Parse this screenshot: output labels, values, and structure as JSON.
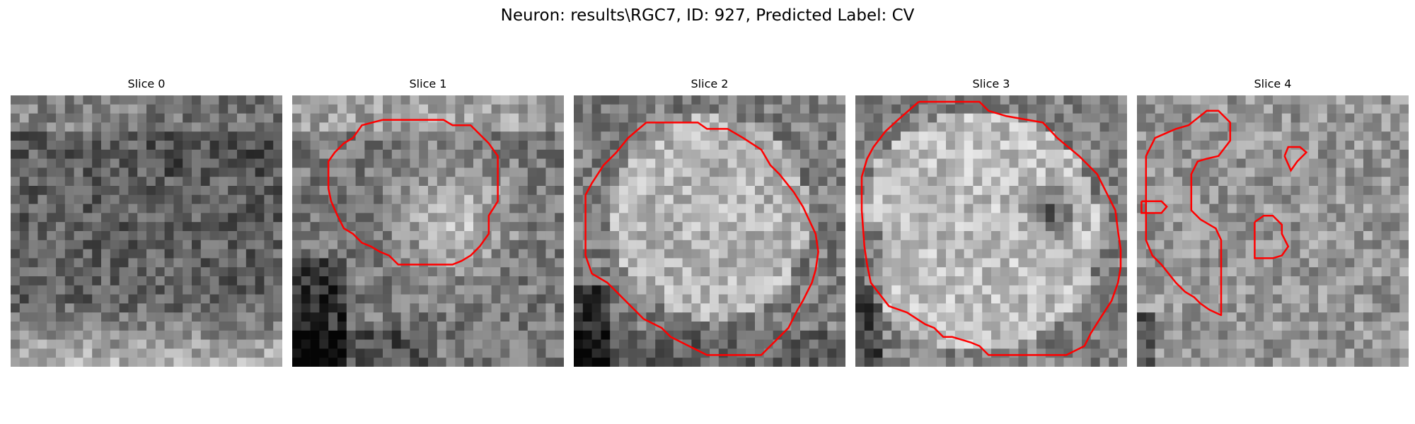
{
  "figure": {
    "title": "Neuron: results\\RGC7, ID: 927, Predicted Label: CV",
    "panels": [
      {
        "title": "Slice 0",
        "seed": 11,
        "contour_color": "#ff0000"
      },
      {
        "title": "Slice 1",
        "seed": 23,
        "contour_color": "#ff0000"
      },
      {
        "title": "Slice 2",
        "seed": 37,
        "contour_color": "#ff0000"
      },
      {
        "title": "Slice 3",
        "seed": 53,
        "contour_color": "#ff0000"
      },
      {
        "title": "Slice 4",
        "seed": 71,
        "contour_color": "#ff0000"
      }
    ]
  }
}
